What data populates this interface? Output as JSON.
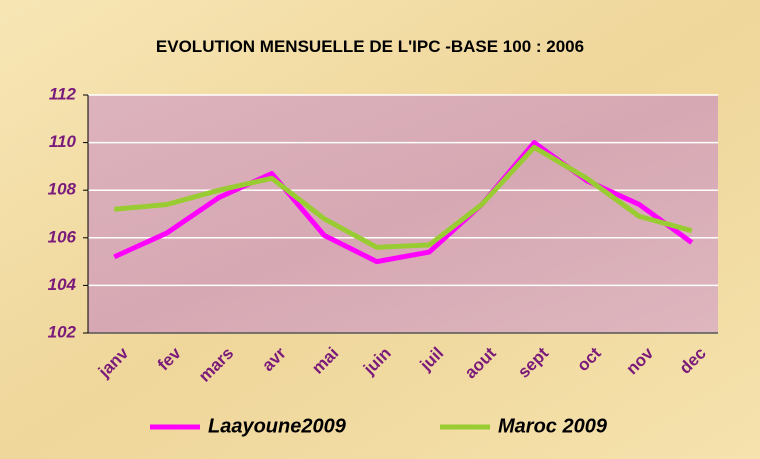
{
  "chart_data": {
    "type": "line",
    "title": "EVOLUTION MENSUELLE DE L'IPC -BASE 100 : 2006",
    "categories": [
      "janv",
      "fev",
      "mars",
      "avr",
      "mai",
      "juin",
      "juil",
      "aout",
      "sept",
      "oct",
      "nov",
      "dec"
    ],
    "series": [
      {
        "name": "Laayoune2009",
        "color": "#ff00ff",
        "values": [
          105.2,
          106.2,
          107.7,
          108.7,
          106.1,
          105.0,
          105.4,
          107.4,
          110.0,
          108.4,
          107.4,
          105.8
        ]
      },
      {
        "name": "Maroc 2009",
        "color": "#99cc33",
        "values": [
          107.2,
          107.4,
          108.0,
          108.5,
          106.8,
          105.6,
          105.7,
          107.4,
          109.8,
          108.5,
          106.9,
          106.3
        ]
      }
    ],
    "ylim": [
      102,
      112
    ],
    "yticks": [
      102,
      104,
      106,
      108,
      110,
      112
    ],
    "grid": true,
    "legend": "bottom"
  }
}
